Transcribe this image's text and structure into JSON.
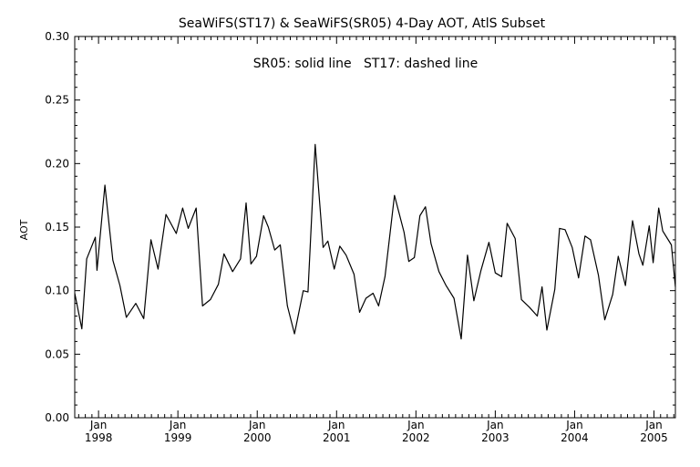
{
  "chart_data": {
    "type": "line",
    "title": "SeaWiFS(ST17) & SeaWiFS(SR05) 4-Day AOT, AtlS Subset",
    "annotation": "SR05: solid line   ST17: dashed line",
    "ylabel": "AOT",
    "xlabel": "",
    "ylim": [
      0.0,
      0.3
    ],
    "xlim": [
      1997.7,
      2005.27
    ],
    "yticks": [
      {
        "value": 0.0,
        "label": "0.00"
      },
      {
        "value": 0.05,
        "label": "0.05"
      },
      {
        "value": 0.1,
        "label": "0.10"
      },
      {
        "value": 0.15,
        "label": "0.15"
      },
      {
        "value": 0.2,
        "label": "0.20"
      },
      {
        "value": 0.25,
        "label": "0.25"
      },
      {
        "value": 0.3,
        "label": "0.30"
      }
    ],
    "xticks": [
      {
        "value": 1998.0,
        "month": "Jan",
        "year": "1998"
      },
      {
        "value": 1999.0,
        "month": "Jan",
        "year": "1999"
      },
      {
        "value": 2000.0,
        "month": "Jan",
        "year": "2000"
      },
      {
        "value": 2001.0,
        "month": "Jan",
        "year": "2001"
      },
      {
        "value": 2002.0,
        "month": "Jan",
        "year": "2002"
      },
      {
        "value": 2003.0,
        "month": "Jan",
        "year": "2003"
      },
      {
        "value": 2004.0,
        "month": "Jan",
        "year": "2004"
      },
      {
        "value": 2005.0,
        "month": "Jan",
        "year": "2005"
      }
    ],
    "grid": false,
    "series": [
      {
        "name": "SR05",
        "style": "solid",
        "color": "#000000",
        "x": [
          1997.7,
          1997.79,
          1997.85,
          1997.96,
          1997.98,
          1998.08,
          1998.18,
          1998.27,
          1998.35,
          1998.47,
          1998.57,
          1998.66,
          1998.75,
          1998.85,
          1998.98,
          1999.06,
          1999.13,
          1999.23,
          1999.31,
          1999.41,
          1999.51,
          1999.58,
          1999.69,
          1999.79,
          1999.86,
          1999.92,
          1999.99,
          2000.08,
          2000.14,
          2000.22,
          2000.29,
          2000.38,
          2000.47,
          2000.58,
          2000.64,
          2000.73,
          2000.83,
          2000.89,
          2000.97,
          2001.04,
          2001.12,
          2001.22,
          2001.29,
          2001.37,
          2001.46,
          2001.53,
          2001.61,
          2001.73,
          2001.85,
          2001.91,
          2001.98,
          2002.05,
          2002.12,
          2002.19,
          2002.29,
          2002.38,
          2002.48,
          2002.57,
          2002.65,
          2002.73,
          2002.82,
          2002.92,
          2003.0,
          2003.08,
          2003.15,
          2003.25,
          2003.33,
          2003.43,
          2003.53,
          2003.59,
          2003.65,
          2003.75,
          2003.81,
          2003.88,
          2003.97,
          2004.05,
          2004.13,
          2004.2,
          2004.3,
          2004.38,
          2004.48,
          2004.55,
          2004.64,
          2004.73,
          2004.81,
          2004.86,
          2004.94,
          2004.99,
          2005.06,
          2005.11,
          2005.22,
          2005.27
        ],
        "values": [
          0.098,
          0.07,
          0.125,
          0.142,
          0.116,
          0.183,
          0.124,
          0.104,
          0.079,
          0.09,
          0.078,
          0.14,
          0.117,
          0.16,
          0.145,
          0.165,
          0.149,
          0.165,
          0.088,
          0.093,
          0.105,
          0.129,
          0.115,
          0.125,
          0.169,
          0.121,
          0.127,
          0.159,
          0.15,
          0.132,
          0.136,
          0.088,
          0.066,
          0.1,
          0.099,
          0.215,
          0.134,
          0.139,
          0.117,
          0.135,
          0.128,
          0.113,
          0.083,
          0.094,
          0.098,
          0.088,
          0.111,
          0.175,
          0.146,
          0.123,
          0.126,
          0.159,
          0.166,
          0.137,
          0.115,
          0.104,
          0.094,
          0.062,
          0.128,
          0.092,
          0.116,
          0.138,
          0.114,
          0.111,
          0.153,
          0.141,
          0.093,
          0.087,
          0.08,
          0.103,
          0.069,
          0.101,
          0.149,
          0.148,
          0.134,
          0.11,
          0.143,
          0.14,
          0.112,
          0.077,
          0.097,
          0.127,
          0.104,
          0.155,
          0.129,
          0.12,
          0.151,
          0.122,
          0.165,
          0.147,
          0.136,
          0.103
        ]
      }
    ]
  }
}
